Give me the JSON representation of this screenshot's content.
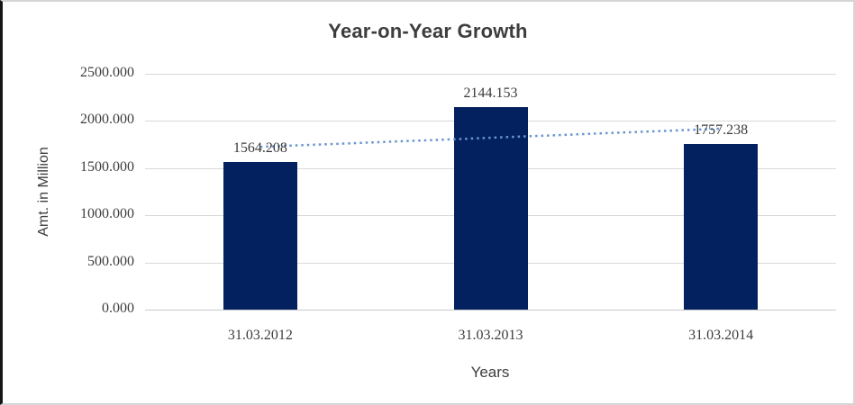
{
  "chart_data": {
    "type": "bar",
    "title": "Year-on-Year Growth",
    "xlabel": "Years",
    "ylabel": "Amt. in Million",
    "categories": [
      "31.03.2012",
      "31.03.2013",
      "31.03.2014"
    ],
    "values": [
      1564.208,
      2144.153,
      1757.238
    ],
    "data_labels": [
      "1564.208",
      "2144.153",
      "1757.238"
    ],
    "ylim": [
      0,
      2500
    ],
    "yticks": [
      {
        "value": 0,
        "label": "0.000"
      },
      {
        "value": 500,
        "label": "500.000"
      },
      {
        "value": 1000,
        "label": "1000.000"
      },
      {
        "value": 1500,
        "label": "1500.000"
      },
      {
        "value": 2000,
        "label": "2000.000"
      },
      {
        "value": 2500,
        "label": "2500.000"
      }
    ],
    "grid": true,
    "legend": "none",
    "trendline": {
      "type": "linear",
      "line_style": "dotted",
      "color": "#6a95d2"
    }
  },
  "colors": {
    "bar": "#03215f",
    "gridline": "#d9d9d9",
    "axis_line": "#c9c9c9",
    "text": "#3d3d3d",
    "background": "#ffffff",
    "frame_border": "#d5d5d5",
    "left_edge": "#151515"
  }
}
